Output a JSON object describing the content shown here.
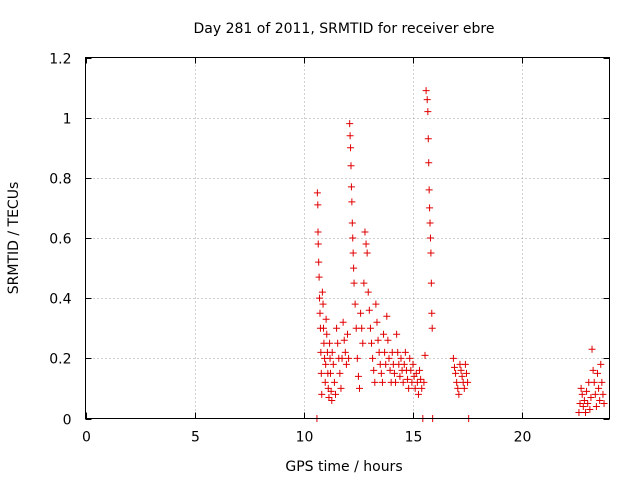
{
  "chart_data": {
    "type": "scatter",
    "title": "Day 281 of 2011, SRMTID for receiver ebre",
    "xlabel": "GPS time / hours",
    "ylabel": "SRMTID / TECUs",
    "xlim": [
      0,
      24
    ],
    "ylim": [
      0,
      1.2
    ],
    "xticks": [
      0,
      5,
      10,
      15,
      20
    ],
    "yticks": [
      0,
      0.2,
      0.4,
      0.6,
      0.8,
      1,
      1.2
    ],
    "xtick_labels": [
      "0",
      "5",
      "10",
      "15",
      "20"
    ],
    "ytick_labels": [
      "0",
      "0.2",
      "0.4",
      "0.6",
      "0.8",
      "1",
      "1.2"
    ],
    "grid": true,
    "legend": "none",
    "marker": "+",
    "color": "#e00000",
    "series": [
      {
        "x": [
          10.6,
          10.62,
          10.64,
          10.65,
          10.66,
          10.68,
          10.7,
          10.72,
          10.74,
          10.76,
          10.78,
          10.8,
          10.82,
          10.85,
          10.88,
          10.9,
          10.92,
          10.95,
          10.98,
          11.0,
          11.02,
          11.05,
          11.08,
          11.1,
          11.12,
          11.15,
          11.18,
          11.2,
          11.22,
          11.25,
          11.28,
          11.3,
          11.35,
          11.4,
          11.45,
          11.5,
          11.55,
          11.6,
          11.65,
          11.7,
          11.75,
          11.8,
          11.85,
          11.9,
          11.95,
          12.0,
          12.05,
          12.1,
          12.12,
          12.14,
          12.16,
          12.18,
          12.2,
          12.22,
          12.24,
          12.26,
          12.28,
          12.3,
          12.35,
          12.4,
          12.45,
          12.5,
          12.55,
          12.6,
          12.65,
          12.7,
          12.75,
          12.8,
          12.85,
          12.9,
          12.95,
          13.0,
          13.05,
          13.1,
          13.15,
          13.2,
          13.25,
          13.3,
          13.35,
          13.4,
          13.45,
          13.5,
          13.55,
          13.6,
          13.65,
          13.7,
          13.75,
          13.8,
          13.85,
          13.9,
          13.95,
          14.0,
          14.05,
          14.1,
          14.15,
          14.2,
          14.25,
          14.3,
          14.35,
          14.4,
          14.45,
          14.5,
          14.55,
          14.6,
          14.65,
          14.7,
          14.75,
          14.8,
          14.85,
          14.9,
          14.95,
          15.0,
          15.05,
          15.1,
          15.15,
          15.2,
          15.25,
          15.3,
          15.35,
          15.4,
          15.45,
          15.5,
          15.55,
          15.6,
          15.65,
          15.68,
          15.7,
          15.72,
          15.74,
          15.76,
          15.78,
          15.8,
          15.82,
          15.84,
          15.86,
          15.88,
          15.9,
          16.85,
          16.9,
          16.95,
          17.0,
          17.05,
          17.1,
          17.15,
          17.2,
          17.25,
          17.3,
          17.35,
          17.4,
          17.45,
          17.5,
          17.55,
          22.6,
          22.65,
          22.7,
          22.75,
          22.8,
          22.85,
          22.9,
          22.95,
          23.0,
          23.05,
          23.1,
          23.15,
          23.2,
          23.25,
          23.3,
          23.35,
          23.4,
          23.45,
          23.5,
          23.55,
          23.6,
          23.65,
          23.7,
          23.75
        ],
        "y": [
          0.0,
          0.75,
          0.71,
          0.62,
          0.58,
          0.52,
          0.47,
          0.4,
          0.35,
          0.3,
          0.22,
          0.15,
          0.08,
          0.42,
          0.38,
          0.3,
          0.25,
          0.2,
          0.12,
          0.18,
          0.33,
          0.28,
          0.22,
          0.15,
          0.1,
          0.07,
          0.25,
          0.2,
          0.15,
          0.09,
          0.06,
          0.22,
          0.18,
          0.12,
          0.08,
          0.3,
          0.25,
          0.2,
          0.15,
          0.1,
          0.2,
          0.32,
          0.26,
          0.22,
          0.18,
          0.28,
          0.2,
          0.98,
          0.94,
          0.9,
          0.84,
          0.77,
          0.72,
          0.65,
          0.6,
          0.55,
          0.5,
          0.45,
          0.38,
          0.3,
          0.2,
          0.14,
          0.1,
          0.35,
          0.3,
          0.25,
          0.45,
          0.62,
          0.58,
          0.55,
          0.42,
          0.36,
          0.3,
          0.25,
          0.2,
          0.16,
          0.12,
          0.38,
          0.32,
          0.26,
          0.22,
          0.18,
          0.15,
          0.12,
          0.28,
          0.22,
          0.18,
          0.34,
          0.26,
          0.2,
          0.16,
          0.12,
          0.22,
          0.18,
          0.15,
          0.12,
          0.28,
          0.22,
          0.18,
          0.14,
          0.2,
          0.16,
          0.12,
          0.18,
          0.22,
          0.16,
          0.13,
          0.1,
          0.2,
          0.16,
          0.12,
          0.18,
          0.14,
          0.1,
          0.15,
          0.12,
          0.08,
          0.16,
          0.13,
          0.1,
          0.0,
          0.12,
          0.21,
          1.09,
          1.06,
          1.02,
          0.93,
          0.85,
          0.76,
          0.7,
          0.65,
          0.6,
          0.55,
          0.45,
          0.35,
          0.3,
          0.0,
          0.2,
          0.17,
          0.15,
          0.12,
          0.1,
          0.08,
          0.18,
          0.16,
          0.14,
          0.12,
          0.1,
          0.18,
          0.15,
          0.12,
          0.0,
          0.02,
          0.05,
          0.1,
          0.08,
          0.04,
          0.06,
          0.02,
          0.09,
          0.05,
          0.12,
          0.03,
          0.07,
          0.23,
          0.16,
          0.12,
          0.08,
          0.04,
          0.15,
          0.1,
          0.06,
          0.18,
          0.12,
          0.08,
          0.05
        ]
      }
    ]
  }
}
